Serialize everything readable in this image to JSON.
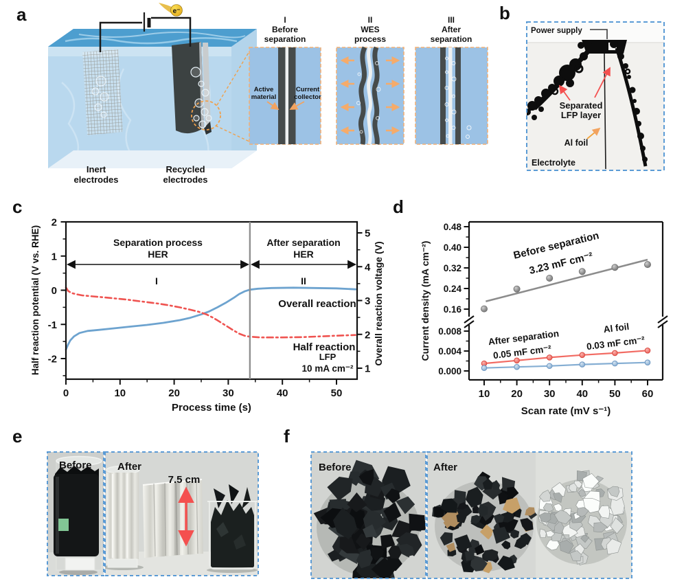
{
  "panel_a": {
    "label": "a",
    "electron_label": "e⁻",
    "labels": {
      "inert_line1": "Inert",
      "inert_line2": "electrodes",
      "recycled_line1": "Recycled",
      "recycled_line2": "electrodes"
    },
    "inset_annotations": {
      "active_line1": "Active",
      "active_line2": "material",
      "collector_line1": "Current",
      "collector_line2": "collector"
    },
    "insets": [
      {
        "numeral": "I",
        "title_line1": "Before",
        "title_line2": "separation"
      },
      {
        "numeral": "II",
        "title_line1": "WES",
        "title_line2": "process"
      },
      {
        "numeral": "III",
        "title_line1": "After",
        "title_line2": "separation"
      }
    ]
  },
  "panel_b": {
    "label": "b",
    "annotations": {
      "power_supply": "Power supply",
      "separated_line1": "Separated",
      "separated_line2": "LFP layer",
      "al_foil": "Al foil",
      "electrolyte": "Electrolyte"
    },
    "colors": {
      "separated": "#f4504f",
      "al_foil": "#f2a33c",
      "electrolyte": "#5b9bd5",
      "power_supply": "#565656"
    }
  },
  "panel_c": {
    "label": "c"
  },
  "panel_d": {
    "label": "d"
  },
  "panel_e": {
    "label": "e",
    "badge_before": "Before",
    "badge_after": "After",
    "measurement": "7.5 cm"
  },
  "panel_f": {
    "label": "f",
    "badge_before": "Before",
    "badge_after": "After"
  },
  "chart_data": [
    {
      "id": "process-potential",
      "type": "line",
      "xlabel": "Process time (s)",
      "ylabel_left": "Half reaction potential (V vs. RHE)",
      "ylabel_right": "Overall reaction voltage (V)",
      "xlim": [
        0,
        53.8
      ],
      "ylim_left": [
        -2.6,
        2
      ],
      "xticks": [
        0,
        10,
        20,
        30,
        40,
        50
      ],
      "yticks_left": [
        2,
        1,
        0,
        -1,
        -2
      ],
      "yticks_right": [
        5,
        4,
        3,
        2,
        1
      ],
      "region_divider_x": 34,
      "annotations": {
        "region1_line1": "Separation process",
        "region1_line2": "HER",
        "region1_numeral": "I",
        "region2_line1": "After separation",
        "region2_line2": "HER",
        "region2_numeral": "II",
        "series1_label": "Overall reaction",
        "series2_label": "Half reaction",
        "condition_line1": "LFP",
        "condition_line2": "10 mA cm⁻²"
      },
      "series": [
        {
          "name": "Overall reaction",
          "axis": "right",
          "style": "solid",
          "color": "#6da3cf",
          "points": [
            [
              0,
              1.55
            ],
            [
              0.4,
              1.7
            ],
            [
              0.8,
              1.82
            ],
            [
              1.5,
              1.94
            ],
            [
              2.5,
              2.04
            ],
            [
              4,
              2.1
            ],
            [
              6,
              2.13
            ],
            [
              9,
              2.18
            ],
            [
              12,
              2.23
            ],
            [
              15,
              2.28
            ],
            [
              18,
              2.34
            ],
            [
              21,
              2.42
            ],
            [
              23,
              2.49
            ],
            [
              25,
              2.59
            ],
            [
              26.5,
              2.68
            ],
            [
              28,
              2.8
            ],
            [
              29.5,
              2.93
            ],
            [
              31,
              3.08
            ],
            [
              32,
              3.19
            ],
            [
              33,
              3.27
            ],
            [
              34,
              3.32
            ],
            [
              35.5,
              3.35
            ],
            [
              38,
              3.37
            ],
            [
              42,
              3.38
            ],
            [
              46,
              3.37
            ],
            [
              50,
              3.36
            ],
            [
              53.5,
              3.33
            ]
          ]
        },
        {
          "name": "Half reaction",
          "axis": "left",
          "style": "dashdot",
          "color": "#ef5350",
          "points": [
            [
              0,
              0.08
            ],
            [
              0.4,
              -0.02
            ],
            [
              1,
              -0.08
            ],
            [
              2,
              -0.12
            ],
            [
              3,
              -0.15
            ],
            [
              5,
              -0.18
            ],
            [
              7,
              -0.21
            ],
            [
              9,
              -0.24
            ],
            [
              11,
              -0.27
            ],
            [
              13,
              -0.31
            ],
            [
              15,
              -0.35
            ],
            [
              17,
              -0.39
            ],
            [
              19,
              -0.44
            ],
            [
              21,
              -0.5
            ],
            [
              23,
              -0.57
            ],
            [
              24.5,
              -0.63
            ],
            [
              26,
              -0.71
            ],
            [
              27,
              -0.79
            ],
            [
              28,
              -0.88
            ],
            [
              29,
              -0.98
            ],
            [
              30,
              -1.08
            ],
            [
              31,
              -1.18
            ],
            [
              32,
              -1.27
            ],
            [
              33,
              -1.33
            ],
            [
              34,
              -1.36
            ],
            [
              36,
              -1.38
            ],
            [
              40,
              -1.38
            ],
            [
              44,
              -1.37
            ],
            [
              47,
              -1.35
            ],
            [
              50,
              -1.33
            ],
            [
              53.5,
              -1.31
            ]
          ]
        }
      ]
    },
    {
      "id": "cv-capacitance",
      "type": "scatter",
      "xlabel": "Scan rate (mV s⁻¹)",
      "ylabel": "Current density (mA cm⁻²)",
      "broken_axis": true,
      "xticks": [
        10,
        20,
        30,
        40,
        50,
        60
      ],
      "yticks_upper": [
        "0.48",
        "0.40",
        "0.32",
        "0.24",
        "0.16"
      ],
      "yticks_lower": [
        "0.008",
        "0.004",
        "0.000"
      ],
      "x": [
        10,
        20,
        30,
        40,
        50,
        60
      ],
      "series": [
        {
          "name": "Before separation",
          "capacitance": "3.23 mF cm⁻²",
          "color": "#8c8c8c",
          "section": "upper",
          "values": [
            0.161,
            0.238,
            0.28,
            0.306,
            0.322,
            0.333
          ],
          "fit_line": [
            [
              10.5,
              0.19
            ],
            [
              60,
              0.352
            ]
          ]
        },
        {
          "name": "After separation",
          "capacitance": "0.05 mF cm⁻²",
          "color": "#f26b63",
          "section": "lower",
          "values": [
            0.0015,
            0.0021,
            0.0027,
            0.0032,
            0.0036,
            0.0041
          ]
        },
        {
          "name": "Al foil",
          "capacitance": "0.03 mF cm⁻²",
          "color": "#85aed3",
          "section": "lower",
          "values": [
            0.0006,
            0.0008,
            0.001,
            0.0013,
            0.0015,
            0.0017
          ]
        }
      ]
    }
  ]
}
